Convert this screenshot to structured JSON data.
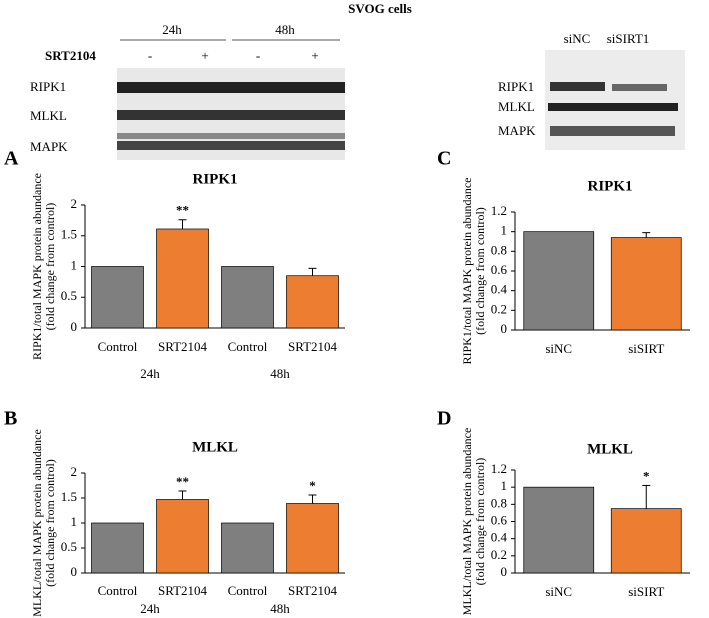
{
  "blots": {
    "title": "SVOG cells",
    "left": {
      "times": [
        "24h",
        "48h"
      ],
      "treatment": "SRT2104",
      "signs": [
        "-",
        "+",
        "-",
        "+"
      ],
      "proteins": [
        "RIPK1",
        "MLKL",
        "MAPK"
      ]
    },
    "right": {
      "lanes": [
        "siNC",
        "siSIRT1"
      ],
      "proteins": [
        "RIPK1",
        "MLKL",
        "MAPK"
      ]
    }
  },
  "chart_data": [
    {
      "type": "bar",
      "panel": "A",
      "title": "RIPK1",
      "ylabel": [
        "RIPK1/total MAPK protein abundance",
        "(fold change from control)"
      ],
      "categories": [
        "Control",
        "SRT2104",
        "Control",
        "SRT2104"
      ],
      "group_labels": [
        "24h",
        "48h"
      ],
      "values": [
        1,
        1.61,
        1,
        0.85
      ],
      "errors": [
        null,
        0.15,
        null,
        0.12
      ],
      "annotations": [
        null,
        "**",
        null,
        null
      ],
      "colors": [
        "#7f7f7f",
        "#ed7d31",
        "#7f7f7f",
        "#ed7d31"
      ],
      "ylim": [
        0,
        2
      ],
      "yticks": [
        0,
        0.5,
        1,
        1.5,
        2
      ]
    },
    {
      "type": "bar",
      "panel": "B",
      "title": "MLKL",
      "ylabel": [
        "MLKL/total MAPK protein abundance",
        "(fold change from control)"
      ],
      "categories": [
        "Control",
        "SRT2104",
        "Control",
        "SRT2104"
      ],
      "group_labels": [
        "24h",
        "48h"
      ],
      "values": [
        1,
        1.47,
        1,
        1.39
      ],
      "errors": [
        null,
        0.17,
        null,
        0.17
      ],
      "annotations": [
        null,
        "**",
        null,
        "*"
      ],
      "colors": [
        "#7f7f7f",
        "#ed7d31",
        "#7f7f7f",
        "#ed7d31"
      ],
      "ylim": [
        0,
        2
      ],
      "yticks": [
        0,
        0.5,
        1,
        1.5,
        2
      ]
    },
    {
      "type": "bar",
      "panel": "C",
      "title": "RIPK1",
      "ylabel": [
        "RIPK1/total MAPK protein abundance",
        "(fold change from control)"
      ],
      "categories": [
        "siNC",
        "siSIRT"
      ],
      "values": [
        1,
        0.94
      ],
      "errors": [
        null,
        0.05
      ],
      "annotations": [
        null,
        null
      ],
      "colors": [
        "#7f7f7f",
        "#ed7d31"
      ],
      "ylim": [
        0,
        1.2
      ],
      "yticks": [
        0,
        0.2,
        0.4,
        0.6,
        0.8,
        1,
        1.2
      ]
    },
    {
      "type": "bar",
      "panel": "D",
      "title": "MLKL",
      "ylabel": [
        "MLKL/total MAPK protein abundance",
        "(fold change from control)"
      ],
      "categories": [
        "siNC",
        "siSIRT"
      ],
      "values": [
        1,
        0.75
      ],
      "errors": [
        null,
        0.27
      ],
      "annotations": [
        null,
        "*"
      ],
      "colors": [
        "#7f7f7f",
        "#ed7d31"
      ],
      "ylim": [
        0,
        1.2
      ],
      "yticks": [
        0,
        0.2,
        0.4,
        0.6,
        0.8,
        1,
        1.2
      ]
    }
  ]
}
